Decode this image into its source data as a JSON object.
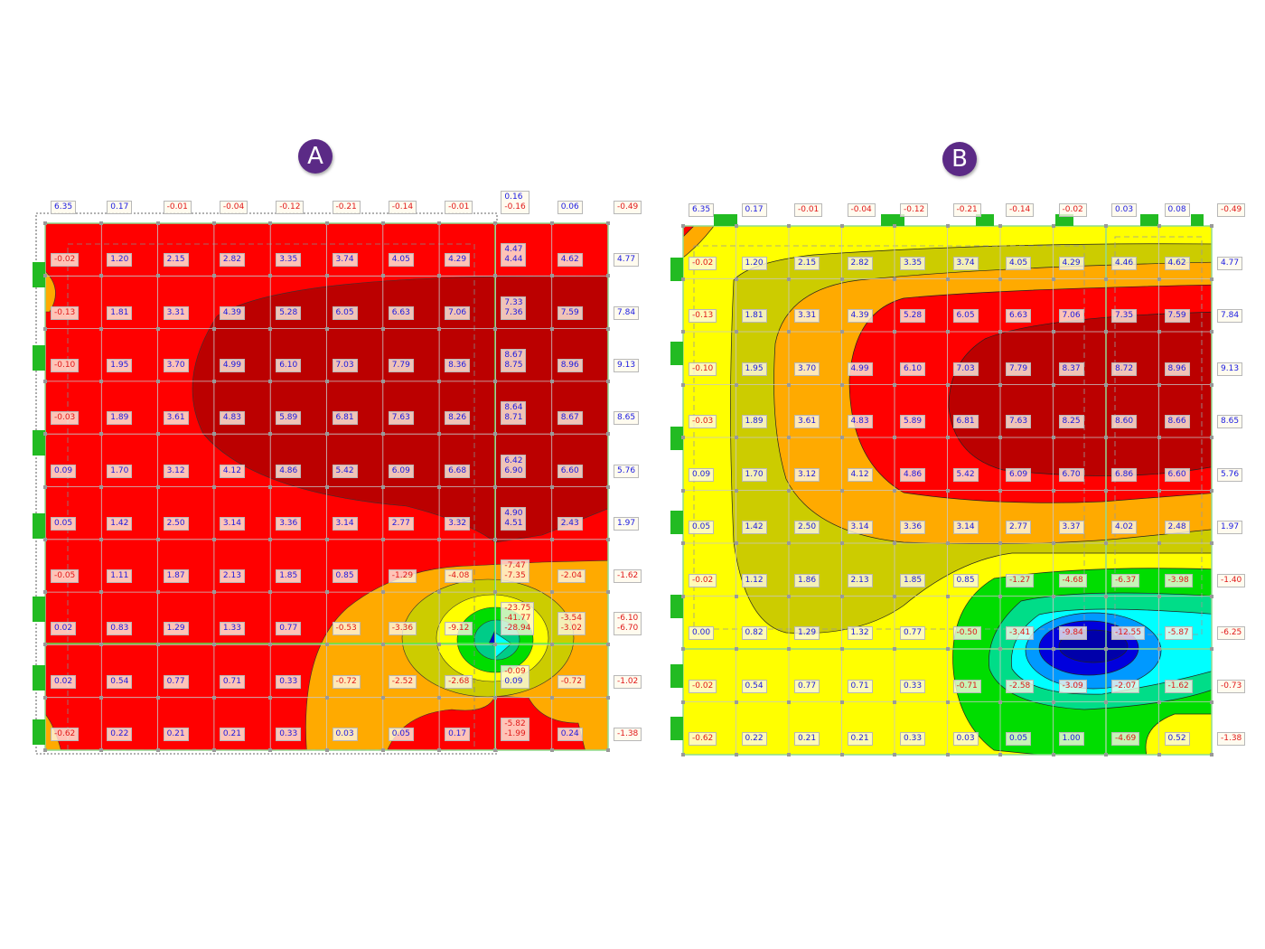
{
  "panels": [
    {
      "id": "A",
      "badge": "A",
      "colors": {
        "base": "#ff0000",
        "dark_red": "#bb0000",
        "orange": "#ffaa00",
        "olive": "#cccc00",
        "yellow": "#ffff00",
        "green": "#00dd00",
        "teal": "#00cc88",
        "cyan": "#00ffff",
        "blue": "#0000cc"
      },
      "rows": [
        [
          "6.35",
          "0.17",
          "-0.01",
          "-0.04",
          "-0.12",
          "-0.21",
          "-0.14",
          "-0.01",
          [
            "0.16",
            "-0.16"
          ],
          "0.06",
          "-0.49"
        ],
        [
          "-0.02",
          "1.20",
          "2.15",
          "2.82",
          "3.35",
          "3.74",
          "4.05",
          "4.29",
          [
            "4.47",
            "4.44"
          ],
          "4.62",
          "4.77"
        ],
        [
          "-0.13",
          "1.81",
          "3.31",
          "4.39",
          "5.28",
          "6.05",
          "6.63",
          "7.06",
          [
            "7.33",
            "7.36"
          ],
          "7.59",
          "7.84"
        ],
        [
          "-0.10",
          "1.95",
          "3.70",
          "4.99",
          "6.10",
          "7.03",
          "7.79",
          "8.36",
          [
            "8.67",
            "8.75"
          ],
          "8.96",
          "9.13"
        ],
        [
          "-0.03",
          "1.89",
          "3.61",
          "4.83",
          "5.89",
          "6.81",
          "7.63",
          "8.26",
          [
            "8.64",
            "8.71"
          ],
          "8.67",
          "8.65"
        ],
        [
          "0.09",
          "1.70",
          "3.12",
          "4.12",
          "4.86",
          "5.42",
          "6.09",
          "6.68",
          [
            "6.42",
            "6.90"
          ],
          "6.60",
          "5.76"
        ],
        [
          "0.05",
          "1.42",
          "2.50",
          "3.14",
          "3.36",
          "3.14",
          "2.77",
          "3.32",
          [
            "4.90",
            "4.51"
          ],
          "2.43",
          "1.97"
        ],
        [
          "-0.05",
          "1.11",
          "1.87",
          "2.13",
          "1.85",
          "0.85",
          "-1.29",
          "-4.08",
          [
            "-7.47",
            "-7.35"
          ],
          "-2.04",
          "-1.62"
        ],
        [
          "0.02",
          "0.83",
          "1.29",
          "1.33",
          "0.77",
          "-0.53",
          "-3.36",
          "-9.12",
          [
            "-23.75",
            "-41.77",
            "-28.94"
          ],
          [
            "-3.54",
            "-3.02"
          ],
          [
            "-6.10",
            "-6.70"
          ]
        ],
        [
          "0.02",
          "0.54",
          "0.77",
          "0.71",
          "0.33",
          "-0.72",
          "-2.52",
          "-2.68",
          [
            "-0.09",
            "0.09"
          ],
          "-0.72",
          "-1.02"
        ],
        [
          "-0.62",
          "0.22",
          "0.21",
          "0.21",
          "0.33",
          "0.03",
          "0.05",
          "0.17",
          [
            "-5.82",
            "-1.99"
          ],
          "0.24",
          "-1.38"
        ]
      ]
    },
    {
      "id": "B",
      "badge": "B",
      "colors": {
        "base": "#ffff00",
        "olive": "#cccc00",
        "orange": "#ffaa00",
        "red": "#ff0000",
        "dark_red": "#bb0000",
        "green": "#00dd00",
        "teal": "#00dd88",
        "cyan": "#00ffff",
        "light_blue": "#0099ff",
        "blue": "#0000dd",
        "dark_blue": "#0000aa"
      },
      "rows": [
        [
          "6.35",
          "0.17",
          "-0.01",
          "-0.04",
          "-0.12",
          "-0.21",
          "-0.14",
          "-0.02",
          "0.03",
          "0.08",
          "-0.49"
        ],
        [
          "-0.02",
          "1.20",
          "2.15",
          "2.82",
          "3.35",
          "3.74",
          "4.05",
          "4.29",
          "4.46",
          "4.62",
          "4.77"
        ],
        [
          "-0.13",
          "1.81",
          "3.31",
          "4.39",
          "5.28",
          "6.05",
          "6.63",
          "7.06",
          "7.35",
          "7.59",
          "7.84"
        ],
        [
          "-0.10",
          "1.95",
          "3.70",
          "4.99",
          "6.10",
          "7.03",
          "7.79",
          "8.37",
          "8.72",
          "8.96",
          "9.13"
        ],
        [
          "-0.03",
          "1.89",
          "3.61",
          "4.83",
          "5.89",
          "6.81",
          "7.63",
          "8.25",
          "8.60",
          "8.66",
          "8.65"
        ],
        [
          "0.09",
          "1.70",
          "3.12",
          "4.12",
          "4.86",
          "5.42",
          "6.09",
          "6.70",
          "6.86",
          "6.60",
          "5.76"
        ],
        [
          "0.05",
          "1.42",
          "2.50",
          "3.14",
          "3.36",
          "3.14",
          "2.77",
          "3.37",
          "4.02",
          "2.48",
          "1.97"
        ],
        [
          "-0.02",
          "1.12",
          "1.86",
          "2.13",
          "1.85",
          "0.85",
          "-1.27",
          "-4.68",
          "-6.37",
          "-3.98",
          "-1.40"
        ],
        [
          "0.00",
          "0.82",
          "1.29",
          "1.32",
          "0.77",
          "-0.50",
          "-3.41",
          "-9.84",
          "-12.55",
          "-5.87",
          "-6.25"
        ],
        [
          "-0.02",
          "0.54",
          "0.77",
          "0.71",
          "0.33",
          "-0.71",
          "-2.58",
          "-3.09",
          "-2.07",
          "-1.62",
          "-0.73"
        ],
        [
          "-0.62",
          "0.22",
          "0.21",
          "0.21",
          "0.33",
          "0.03",
          "0.05",
          "1.00",
          "-4.69",
          "0.52",
          "-1.38"
        ]
      ]
    }
  ]
}
